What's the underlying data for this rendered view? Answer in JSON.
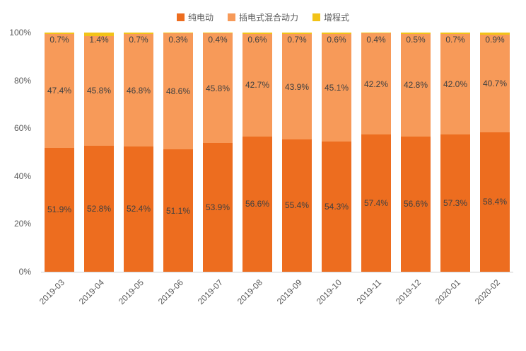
{
  "chart_data": {
    "type": "bar",
    "stacked": true,
    "percent": true,
    "categories": [
      "2019-03",
      "2019-04",
      "2019-05",
      "2019-06",
      "2019-07",
      "2019-08",
      "2019-09",
      "2019-10",
      "2019-11",
      "2019-12",
      "2020-01",
      "2020-02"
    ],
    "series": [
      {
        "name": "纯电动",
        "color": "#ed6d1f",
        "values": [
          51.9,
          52.8,
          52.4,
          51.1,
          53.9,
          56.6,
          55.4,
          54.3,
          57.4,
          56.6,
          57.3,
          58.4
        ]
      },
      {
        "name": "插电式混合动力",
        "color": "#f79a59",
        "values": [
          47.4,
          45.8,
          46.8,
          48.6,
          45.8,
          42.7,
          43.9,
          45.1,
          42.2,
          42.8,
          42.0,
          40.7
        ]
      },
      {
        "name": "增程式",
        "color": "#f2c318",
        "values": [
          0.7,
          1.4,
          0.7,
          0.3,
          0.4,
          0.6,
          0.7,
          0.6,
          0.4,
          0.5,
          0.7,
          0.9
        ]
      }
    ],
    "ylim": [
      0,
      100
    ],
    "yticks": [
      "0%",
      "20%",
      "40%",
      "60%",
      "80%",
      "100%"
    ],
    "legend_position": "top",
    "label_format": "percent-one-decimal"
  }
}
